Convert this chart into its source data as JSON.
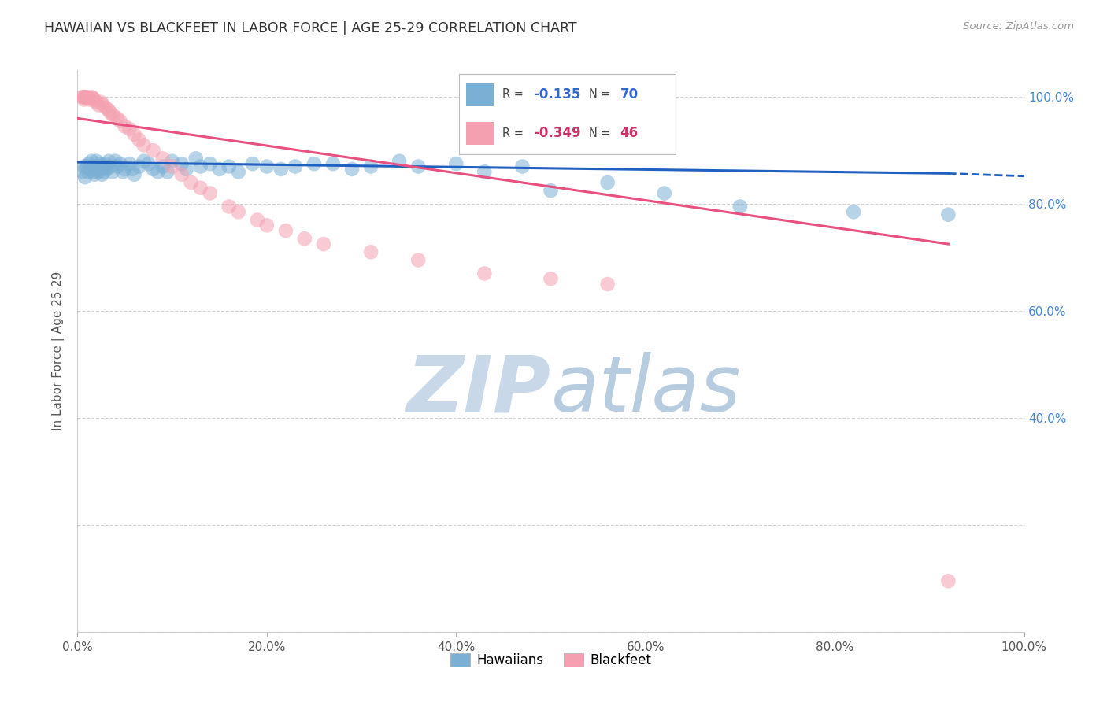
{
  "title": "HAWAIIAN VS BLACKFEET IN LABOR FORCE | AGE 25-29 CORRELATION CHART",
  "source_text": "Source: ZipAtlas.com",
  "ylabel": "In Labor Force | Age 25-29",
  "xlim": [
    0.0,
    1.0
  ],
  "ylim": [
    0.0,
    1.05
  ],
  "xticks": [
    0.0,
    0.2,
    0.4,
    0.6,
    0.8,
    1.0
  ],
  "yticks": [
    0.0,
    0.2,
    0.4,
    0.6,
    0.8,
    1.0
  ],
  "xticklabels": [
    "0.0%",
    "20.0%",
    "40.0%",
    "60.0%",
    "80.0%",
    "100.0%"
  ],
  "right_yticks": [
    0.4,
    0.6,
    0.8,
    1.0
  ],
  "right_yticklabels": [
    "40.0%",
    "60.0%",
    "80.0%",
    "100.0%"
  ],
  "hawaiian_R": -0.135,
  "hawaiian_N": 70,
  "blackfeet_R": -0.349,
  "blackfeet_N": 46,
  "hawaiian_color": "#7bafd4",
  "blackfeet_color": "#f4a0b0",
  "hawaiian_line_color": "#2060c0",
  "blackfeet_line_color": "#e85080",
  "legend_label_hawaiian": "Hawaiians",
  "legend_label_blackfeet": "Blackfeet",
  "watermark": "ZIPatlas",
  "watermark_color": "#c8d8e8",
  "hawaiian_x": [
    0.005,
    0.007,
    0.008,
    0.01,
    0.011,
    0.012,
    0.013,
    0.015,
    0.016,
    0.017,
    0.018,
    0.019,
    0.02,
    0.021,
    0.022,
    0.023,
    0.024,
    0.025,
    0.026,
    0.027,
    0.028,
    0.029,
    0.03,
    0.031,
    0.033,
    0.035,
    0.037,
    0.04,
    0.042,
    0.045,
    0.048,
    0.05,
    0.055,
    0.058,
    0.06,
    0.065,
    0.07,
    0.075,
    0.08,
    0.085,
    0.09,
    0.095,
    0.1,
    0.11,
    0.115,
    0.125,
    0.13,
    0.14,
    0.15,
    0.16,
    0.17,
    0.185,
    0.2,
    0.215,
    0.23,
    0.25,
    0.27,
    0.29,
    0.31,
    0.34,
    0.36,
    0.4,
    0.43,
    0.47,
    0.5,
    0.56,
    0.62,
    0.7,
    0.82,
    0.92
  ],
  "hawaiian_y": [
    0.86,
    0.87,
    0.85,
    0.87,
    0.86,
    0.875,
    0.865,
    0.88,
    0.87,
    0.86,
    0.855,
    0.87,
    0.88,
    0.865,
    0.86,
    0.87,
    0.875,
    0.865,
    0.855,
    0.87,
    0.86,
    0.875,
    0.87,
    0.865,
    0.88,
    0.87,
    0.86,
    0.88,
    0.87,
    0.875,
    0.86,
    0.865,
    0.875,
    0.865,
    0.855,
    0.87,
    0.88,
    0.875,
    0.865,
    0.86,
    0.87,
    0.86,
    0.88,
    0.875,
    0.865,
    0.885,
    0.87,
    0.875,
    0.865,
    0.87,
    0.86,
    0.875,
    0.87,
    0.865,
    0.87,
    0.875,
    0.875,
    0.865,
    0.87,
    0.88,
    0.87,
    0.875,
    0.86,
    0.87,
    0.825,
    0.84,
    0.82,
    0.795,
    0.785,
    0.78
  ],
  "blackfeet_x": [
    0.005,
    0.006,
    0.007,
    0.008,
    0.009,
    0.01,
    0.012,
    0.013,
    0.015,
    0.016,
    0.018,
    0.02,
    0.022,
    0.025,
    0.027,
    0.03,
    0.033,
    0.035,
    0.038,
    0.042,
    0.045,
    0.05,
    0.055,
    0.06,
    0.065,
    0.07,
    0.08,
    0.09,
    0.1,
    0.11,
    0.12,
    0.13,
    0.14,
    0.16,
    0.17,
    0.19,
    0.2,
    0.22,
    0.24,
    0.26,
    0.31,
    0.36,
    0.43,
    0.5,
    0.56,
    0.92
  ],
  "blackfeet_y": [
    1.0,
    1.0,
    0.995,
    1.0,
    0.998,
    1.0,
    0.998,
    0.995,
    1.0,
    0.998,
    0.995,
    0.99,
    0.985,
    0.99,
    0.985,
    0.98,
    0.975,
    0.97,
    0.965,
    0.96,
    0.955,
    0.945,
    0.94,
    0.93,
    0.92,
    0.91,
    0.9,
    0.885,
    0.87,
    0.855,
    0.84,
    0.83,
    0.82,
    0.795,
    0.785,
    0.77,
    0.76,
    0.75,
    0.735,
    0.725,
    0.71,
    0.695,
    0.67,
    0.66,
    0.65,
    0.095
  ],
  "bg_color": "#ffffff",
  "grid_color": "#d0d0d0"
}
